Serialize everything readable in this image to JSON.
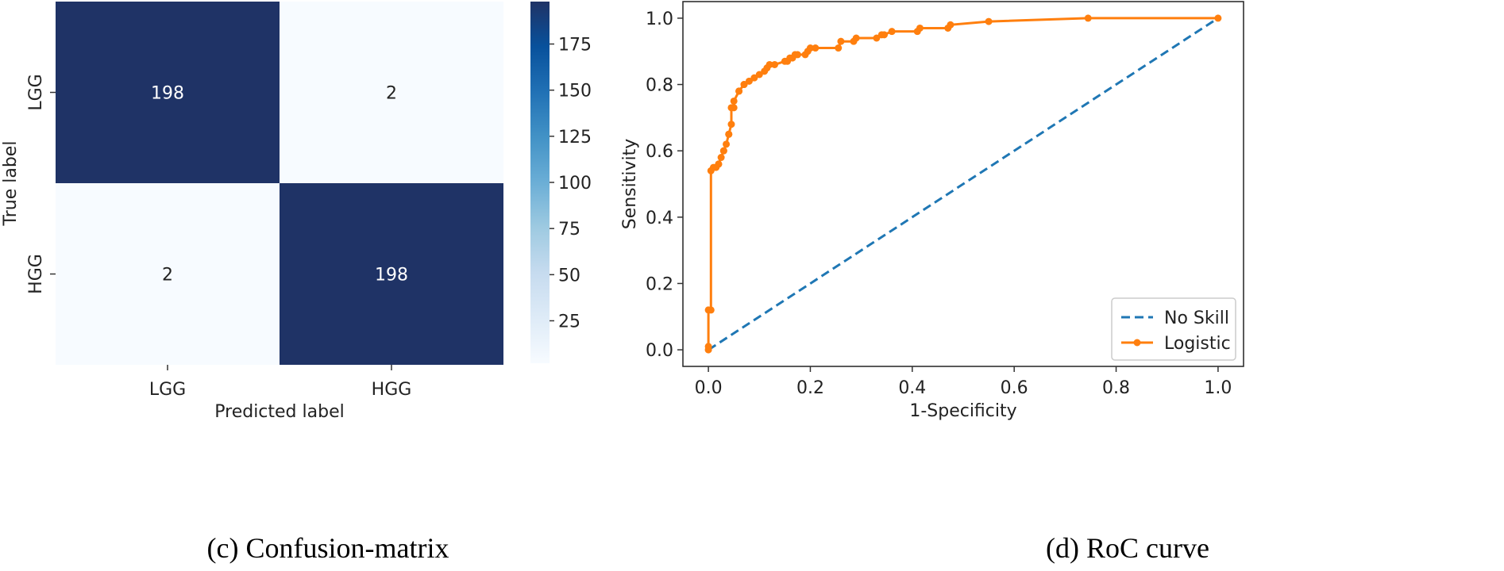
{
  "captions": {
    "left": "(c) Confusion-matrix",
    "right": "(d) RoC curve"
  },
  "chart_data": [
    {
      "type": "heatmap",
      "xlabel": "Predicted label",
      "ylabel": "True label",
      "x_categories": [
        "LGG",
        "HGG"
      ],
      "y_categories": [
        "LGG",
        "HGG"
      ],
      "matrix": [
        [
          198,
          2
        ],
        [
          2,
          198
        ]
      ],
      "cell_labels": [
        [
          "198",
          "2"
        ],
        [
          "2",
          "198"
        ]
      ],
      "colorbar": {
        "min": 2,
        "max": 198,
        "ticks": [
          25,
          50,
          75,
          100,
          125,
          150,
          175
        ],
        "tick_labels": [
          "25",
          "50",
          "75",
          "100",
          "125",
          "150",
          "175"
        ],
        "colormap": "Blues",
        "color_low": "#f7fbff",
        "color_high": "#1f3366"
      }
    },
    {
      "type": "line",
      "xlabel": "1-Specificity",
      "ylabel": "Sensitivity",
      "xlim": [
        -0.05,
        1.05
      ],
      "ylim": [
        -0.05,
        1.05
      ],
      "x_ticks": [
        0.0,
        0.2,
        0.4,
        0.6,
        0.8,
        1.0
      ],
      "x_tick_labels": [
        "0.0",
        "0.2",
        "0.4",
        "0.6",
        "0.8",
        "1.0"
      ],
      "y_ticks": [
        0.0,
        0.2,
        0.4,
        0.6,
        0.8,
        1.0
      ],
      "y_tick_labels": [
        "0.0",
        "0.2",
        "0.4",
        "0.6",
        "0.8",
        "1.0"
      ],
      "grid": false,
      "legend_position": "lower-right",
      "series": [
        {
          "name": "No Skill",
          "style": "dashed",
          "color": "#1f77b4",
          "x": [
            0.0,
            1.0
          ],
          "y": [
            0.0,
            1.0
          ]
        },
        {
          "name": "Logistic",
          "style": "solid-markers",
          "color": "#ff7f0e",
          "x": [
            0.0,
            0.0,
            0.0,
            0.005,
            0.005,
            0.01,
            0.015,
            0.02,
            0.02,
            0.025,
            0.03,
            0.03,
            0.035,
            0.04,
            0.04,
            0.045,
            0.045,
            0.05,
            0.05,
            0.06,
            0.06,
            0.07,
            0.07,
            0.08,
            0.09,
            0.1,
            0.11,
            0.115,
            0.12,
            0.13,
            0.15,
            0.155,
            0.16,
            0.165,
            0.17,
            0.175,
            0.19,
            0.195,
            0.2,
            0.21,
            0.255,
            0.26,
            0.285,
            0.29,
            0.33,
            0.34,
            0.345,
            0.36,
            0.41,
            0.415,
            0.47,
            0.475,
            0.55,
            0.745,
            1.0
          ],
          "y": [
            0.0,
            0.01,
            0.12,
            0.12,
            0.54,
            0.55,
            0.55,
            0.56,
            0.56,
            0.58,
            0.6,
            0.6,
            0.62,
            0.65,
            0.65,
            0.68,
            0.73,
            0.73,
            0.75,
            0.78,
            0.78,
            0.8,
            0.8,
            0.81,
            0.82,
            0.83,
            0.84,
            0.85,
            0.86,
            0.86,
            0.87,
            0.87,
            0.88,
            0.88,
            0.89,
            0.89,
            0.89,
            0.9,
            0.91,
            0.91,
            0.91,
            0.93,
            0.93,
            0.94,
            0.94,
            0.95,
            0.95,
            0.96,
            0.96,
            0.97,
            0.97,
            0.98,
            0.99,
            1.0,
            1.0
          ]
        }
      ]
    }
  ]
}
